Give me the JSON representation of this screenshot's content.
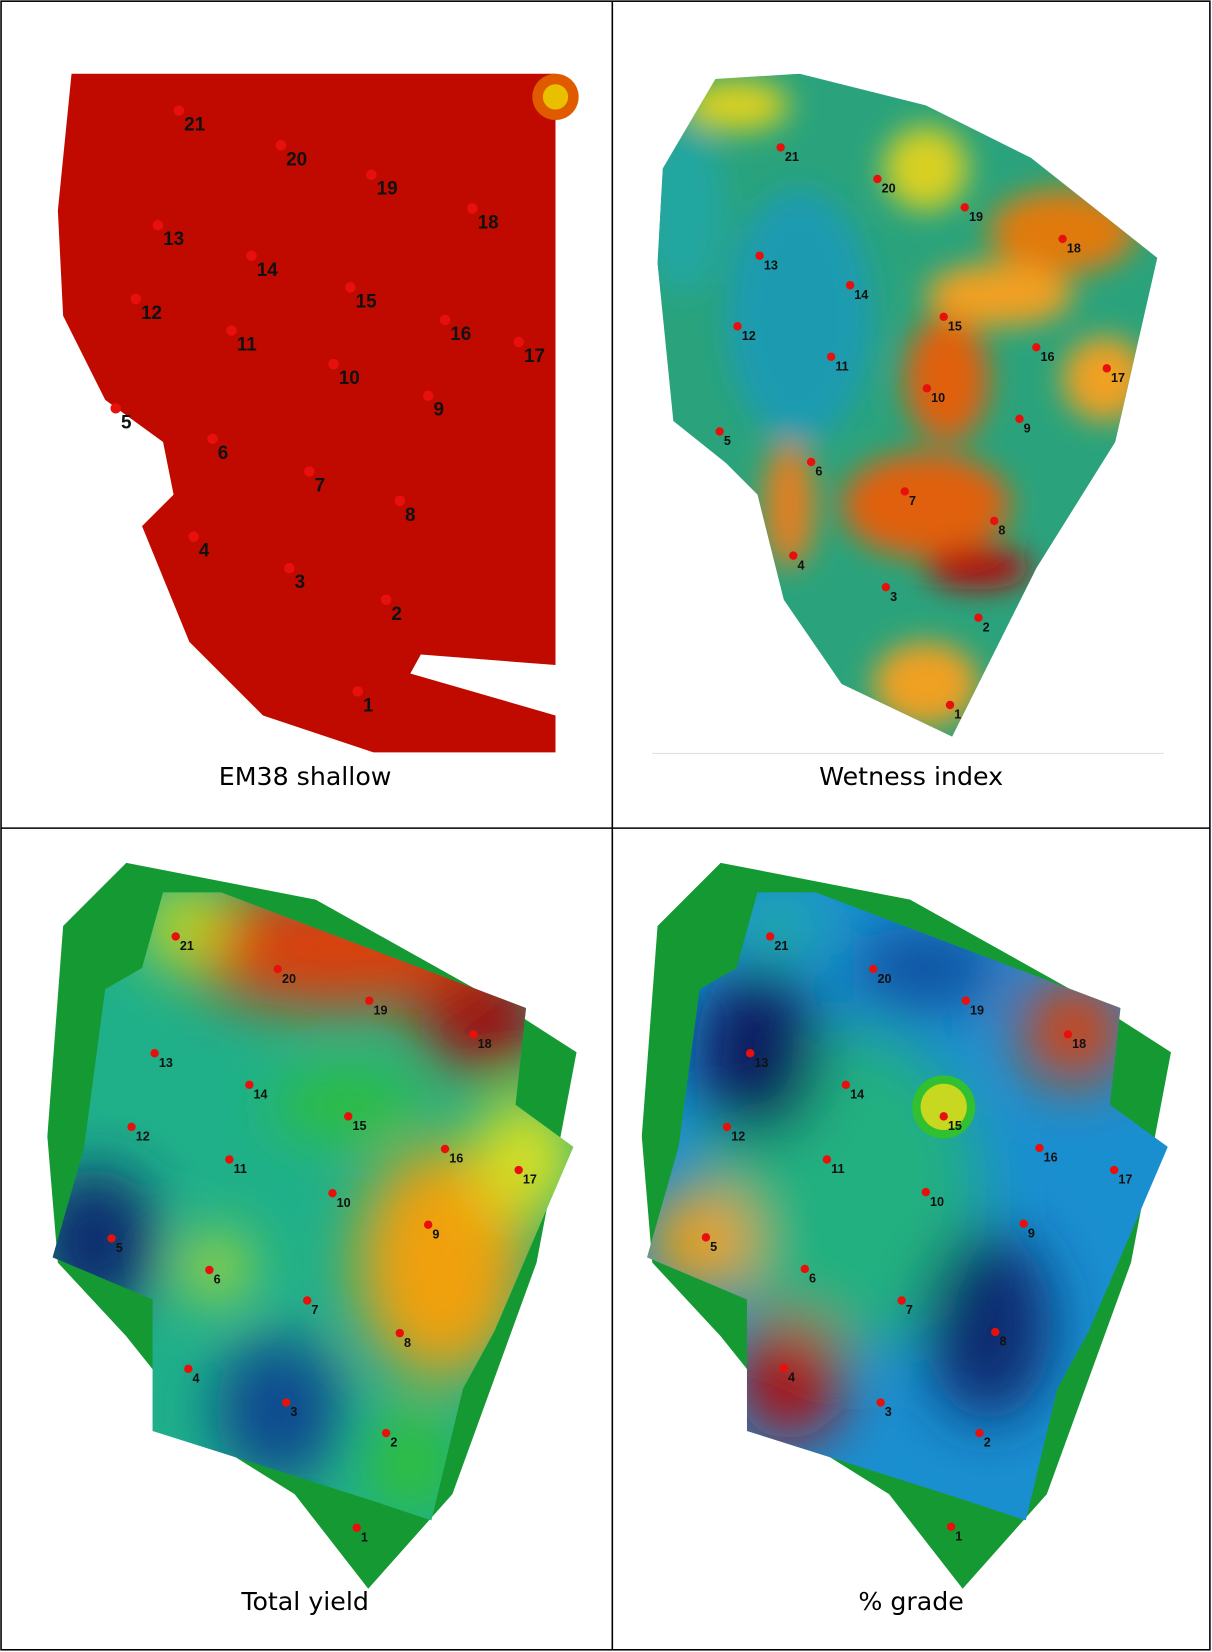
{
  "panels": [
    {
      "caption": "EM38 shallow",
      "points": [
        "1",
        "2",
        "3",
        "4",
        "5",
        "6",
        "7",
        "8",
        "9",
        "10",
        "11",
        "12",
        "13",
        "14",
        "15",
        "16",
        "17",
        "18",
        "19",
        "20",
        "21"
      ]
    },
    {
      "caption": "Wetness index",
      "points": [
        "1",
        "2",
        "3",
        "4",
        "5",
        "6",
        "7",
        "8",
        "9",
        "10",
        "11",
        "12",
        "13",
        "14",
        "15",
        "16",
        "17",
        "18",
        "19",
        "20",
        "21"
      ]
    },
    {
      "caption": "Total yield",
      "points": [
        "1",
        "2",
        "3",
        "4",
        "5",
        "6",
        "7",
        "8",
        "9",
        "10",
        "11",
        "12",
        "13",
        "14",
        "15",
        "16",
        "17",
        "18",
        "19",
        "20",
        "21"
      ]
    },
    {
      "caption": "% grade",
      "points": [
        "1",
        "2",
        "3",
        "4",
        "5",
        "6",
        "7",
        "8",
        "9",
        "10",
        "11",
        "12",
        "13",
        "14",
        "15",
        "16",
        "17",
        "18",
        "19",
        "20",
        "21"
      ]
    }
  ]
}
